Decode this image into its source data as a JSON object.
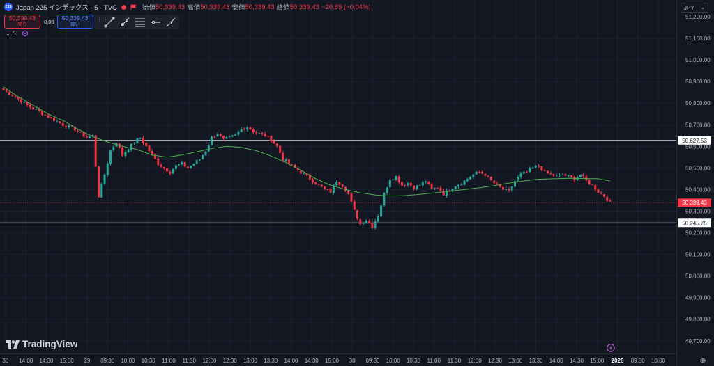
{
  "header": {
    "symbol_badge": "225",
    "title": "Japan 225 インデックス · 5 · TVC",
    "ohlc": [
      {
        "label": "始値",
        "value": "50,339.43"
      },
      {
        "label": "高値",
        "value": "50,339.43"
      },
      {
        "label": "安値",
        "value": "50,339.43"
      },
      {
        "label": "終値",
        "value": "50,339.43"
      }
    ],
    "change": "−20.65 (−0.04%)"
  },
  "trade_buttons": {
    "sell_value": "50,339.43",
    "sell_label": "売り",
    "spread": "0.00",
    "buy_value": "50,339.43",
    "buy_label": "買い"
  },
  "indicator": {
    "label": "5"
  },
  "currency": "JPY",
  "logo_text": "TradingView",
  "colors": {
    "up": "#26a69a",
    "down": "#f23645",
    "ma": "#4caf50",
    "bg": "#131722",
    "grid": "#1c2030"
  },
  "icons": [
    "chevron-down-icon",
    "trend-line-icon",
    "ray-icon",
    "fib-icon",
    "hline-icon",
    "path-icon",
    "flag-icon",
    "gear-icon",
    "replay-icon"
  ],
  "chart_data": {
    "type": "candlestick",
    "y_ticks": [
      "51,200.00",
      "51,100.00",
      "51,000.00",
      "50,900.00",
      "50,800.00",
      "50,700.00",
      "50,600.00",
      "50,500.00",
      "50,400.00",
      "50,300.00",
      "50,200.00",
      "50,100.00",
      "50,000.00",
      "49,900.00",
      "49,800.00",
      "49,700.00"
    ],
    "y_values": [
      51200,
      51100,
      51000,
      50900,
      50800,
      50700,
      50600,
      50500,
      50400,
      50300,
      50200,
      50100,
      50000,
      49900,
      49800,
      49700
    ],
    "ylim": [
      49675,
      51250
    ],
    "x_ticks": [
      "30",
      "14:00",
      "14:30",
      "15:00",
      "29",
      "09:30",
      "10:00",
      "10:30",
      "11:00",
      "11:30",
      "12:00",
      "12:30",
      "13:00",
      "13:30",
      "14:00",
      "14:30",
      "15:00",
      "30",
      "09:30",
      "10:00",
      "10:30",
      "11:00",
      "11:30",
      "12:00",
      "12:30",
      "13:00",
      "13:30",
      "14:00",
      "14:30",
      "15:00",
      "2026",
      "09:30",
      "10:00"
    ],
    "x_tick_bold": [
      false,
      false,
      false,
      false,
      false,
      false,
      false,
      false,
      false,
      false,
      false,
      false,
      false,
      false,
      false,
      false,
      false,
      false,
      false,
      false,
      false,
      false,
      false,
      false,
      false,
      false,
      false,
      false,
      false,
      false,
      true,
      false,
      false
    ],
    "horizontal_lines": [
      {
        "value": 50627.53,
        "label": "50,627.53"
      },
      {
        "value": 50245.75,
        "label": "50,245.75"
      }
    ],
    "last_price": {
      "value": 50339.43,
      "label": "50,339.43"
    },
    "ma_anchors": [
      [
        0,
        50875
      ],
      [
        5,
        50830
      ],
      [
        10,
        50790
      ],
      [
        15,
        50750
      ],
      [
        20,
        50720
      ],
      [
        25,
        50680
      ],
      [
        30,
        50645
      ],
      [
        35,
        50620
      ],
      [
        40,
        50600
      ],
      [
        45,
        50585
      ],
      [
        50,
        50560
      ],
      [
        55,
        50550
      ],
      [
        60,
        50560
      ],
      [
        65,
        50575
      ],
      [
        70,
        50590
      ],
      [
        75,
        50600
      ],
      [
        80,
        50595
      ],
      [
        85,
        50580
      ],
      [
        90,
        50555
      ],
      [
        95,
        50525
      ],
      [
        100,
        50490
      ],
      [
        105,
        50450
      ],
      [
        110,
        50420
      ],
      [
        115,
        50400
      ],
      [
        120,
        50385
      ],
      [
        125,
        50375
      ],
      [
        130,
        50370
      ],
      [
        135,
        50372
      ],
      [
        140,
        50378
      ],
      [
        145,
        50385
      ],
      [
        150,
        50392
      ],
      [
        155,
        50400
      ],
      [
        160,
        50408
      ],
      [
        165,
        50418
      ],
      [
        170,
        50430
      ],
      [
        175,
        50440
      ],
      [
        180,
        50448
      ],
      [
        185,
        50450
      ],
      [
        190,
        50452
      ],
      [
        195,
        50451
      ],
      [
        200,
        50450
      ],
      [
        204,
        50440
      ]
    ],
    "candles_generated_from_anchors": [
      [
        0,
        50860
      ],
      [
        4,
        50830
      ],
      [
        8,
        50790
      ],
      [
        12,
        50760
      ],
      [
        16,
        50730
      ],
      [
        20,
        50700
      ],
      [
        24,
        50680
      ],
      [
        28,
        50640
      ],
      [
        30,
        50650
      ],
      [
        32,
        50370
      ],
      [
        34,
        50470
      ],
      [
        36,
        50580
      ],
      [
        38,
        50620
      ],
      [
        40,
        50560
      ],
      [
        42,
        50590
      ],
      [
        44,
        50620
      ],
      [
        46,
        50640
      ],
      [
        48,
        50600
      ],
      [
        50,
        50560
      ],
      [
        52,
        50520
      ],
      [
        54,
        50500
      ],
      [
        56,
        50480
      ],
      [
        58,
        50510
      ],
      [
        60,
        50520
      ],
      [
        62,
        50500
      ],
      [
        64,
        50520
      ],
      [
        66,
        50540
      ],
      [
        68,
        50580
      ],
      [
        70,
        50640
      ],
      [
        72,
        50660
      ],
      [
        74,
        50630
      ],
      [
        76,
        50640
      ],
      [
        78,
        50650
      ],
      [
        80,
        50680
      ],
      [
        82,
        50690
      ],
      [
        84,
        50670
      ],
      [
        86,
        50660
      ],
      [
        88,
        50650
      ],
      [
        90,
        50630
      ],
      [
        92,
        50600
      ],
      [
        94,
        50540
      ],
      [
        96,
        50520
      ],
      [
        98,
        50500
      ],
      [
        100,
        50480
      ],
      [
        102,
        50460
      ],
      [
        104,
        50440
      ],
      [
        106,
        50420
      ],
      [
        108,
        50400
      ],
      [
        110,
        50390
      ],
      [
        112,
        50440
      ],
      [
        114,
        50420
      ],
      [
        116,
        50380
      ],
      [
        118,
        50300
      ],
      [
        120,
        50240
      ],
      [
        122,
        50260
      ],
      [
        124,
        50230
      ],
      [
        126,
        50280
      ],
      [
        128,
        50380
      ],
      [
        130,
        50450
      ],
      [
        132,
        50460
      ],
      [
        134,
        50420
      ],
      [
        136,
        50430
      ],
      [
        138,
        50410
      ],
      [
        140,
        50420
      ],
      [
        142,
        50440
      ],
      [
        144,
        50400
      ],
      [
        146,
        50410
      ],
      [
        148,
        50380
      ],
      [
        150,
        50400
      ],
      [
        152,
        50420
      ],
      [
        154,
        50430
      ],
      [
        156,
        50450
      ],
      [
        158,
        50470
      ],
      [
        160,
        50480
      ],
      [
        162,
        50470
      ],
      [
        164,
        50440
      ],
      [
        166,
        50420
      ],
      [
        168,
        50400
      ],
      [
        170,
        50390
      ],
      [
        172,
        50440
      ],
      [
        174,
        50470
      ],
      [
        176,
        50480
      ],
      [
        178,
        50500
      ],
      [
        180,
        50510
      ],
      [
        182,
        50480
      ],
      [
        184,
        50470
      ],
      [
        186,
        50460
      ],
      [
        188,
        50470
      ],
      [
        190,
        50460
      ],
      [
        192,
        50450
      ],
      [
        194,
        50470
      ],
      [
        196,
        50440
      ],
      [
        198,
        50420
      ],
      [
        200,
        50390
      ],
      [
        202,
        50370
      ],
      [
        204,
        50340
      ]
    ],
    "candle_count": 205
  }
}
